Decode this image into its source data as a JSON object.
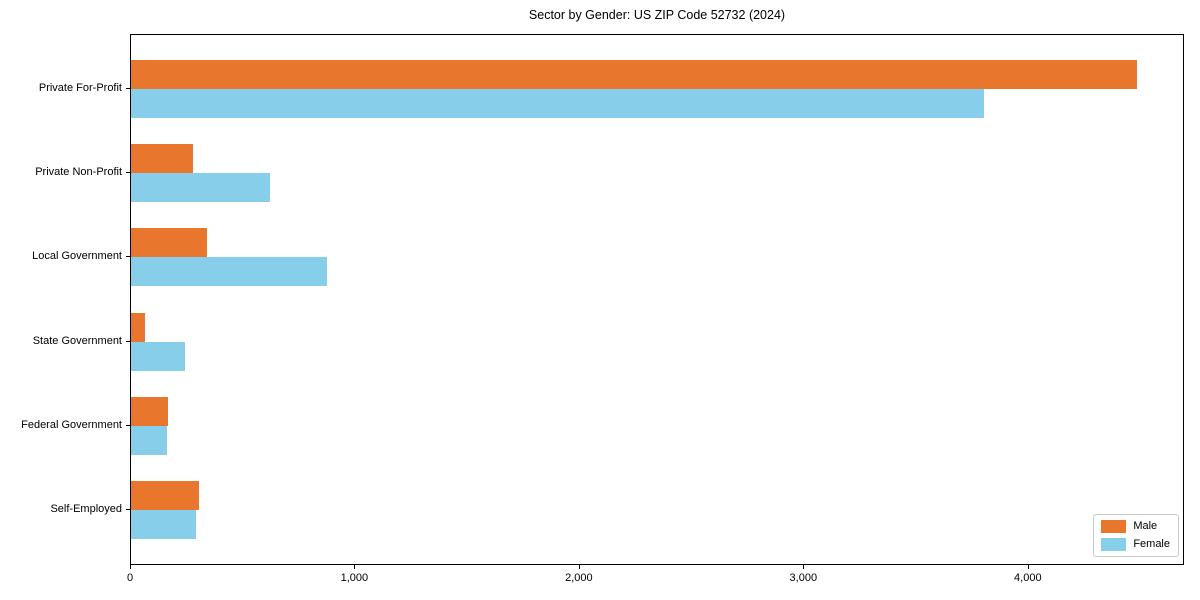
{
  "chart_data": {
    "type": "bar",
    "orientation": "horizontal",
    "title": "Sector by Gender: US ZIP Code 52732 (2024)",
    "categories": [
      "Private For-Profit",
      "Private Non-Profit",
      "Local Government",
      "State Government",
      "Federal Government",
      "Self-Employed"
    ],
    "series": [
      {
        "name": "Male",
        "color": "#e8762d",
        "values": [
          4480,
          277,
          339,
          64,
          165,
          302
        ]
      },
      {
        "name": "Female",
        "color": "#87ceeb",
        "values": [
          3800,
          621,
          874,
          239,
          161,
          291
        ]
      }
    ],
    "xlabel": "",
    "ylabel": "",
    "xlim": [
      0,
      4696
    ],
    "xticks": [
      {
        "value": 0,
        "label": "0"
      },
      {
        "value": 1000,
        "label": "1,000"
      },
      {
        "value": 2000,
        "label": "2,000"
      },
      {
        "value": 3000,
        "label": "3,000"
      },
      {
        "value": 4000,
        "label": "4,000"
      }
    ],
    "grid": false,
    "legend": {
      "position": "lower-right",
      "entries": [
        "Male",
        "Female"
      ]
    }
  }
}
